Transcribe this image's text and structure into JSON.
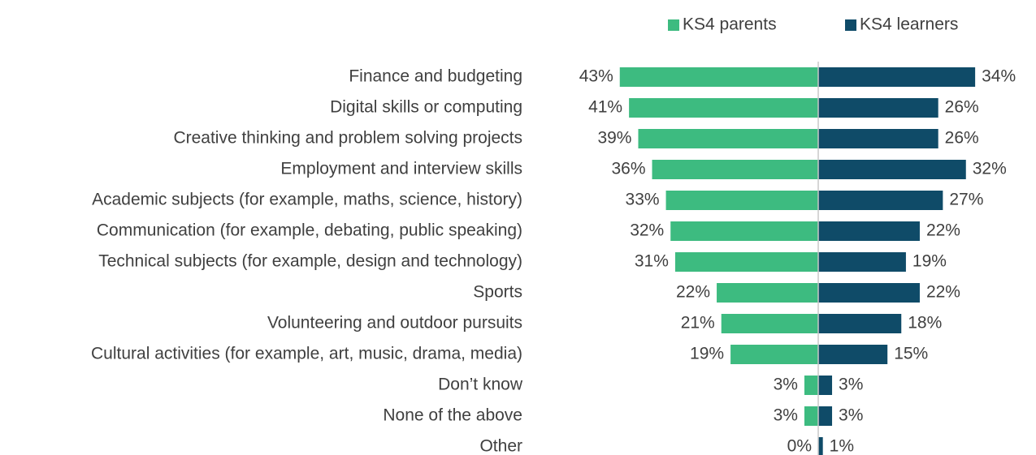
{
  "chart_data": {
    "type": "bar",
    "categories": [
      "Finance and budgeting",
      "Digital skills or computing",
      "Creative thinking and problem solving projects",
      "Employment and interview skills",
      "Academic subjects (for example, maths, science, history)",
      "Communication (for example, debating, public speaking)",
      "Technical subjects (for example, design and technology)",
      "Sports",
      "Volunteering and outdoor pursuits",
      "Cultural activities (for example, art, music, drama, media)",
      "Don’t know",
      "None of the above",
      "Other"
    ],
    "series": [
      {
        "name": "KS4 parents",
        "color": "#3dbb80",
        "values": [
          43,
          41,
          39,
          36,
          33,
          32,
          31,
          22,
          21,
          19,
          3,
          3,
          0
        ],
        "value_labels": [
          "43%",
          "41%",
          "39%",
          "36%",
          "33%",
          "32%",
          "31%",
          "22%",
          "21%",
          "19%",
          "3%",
          "3%",
          "0%"
        ]
      },
      {
        "name": "KS4 learners",
        "color": "#0f4b68",
        "values": [
          34,
          26,
          26,
          32,
          27,
          22,
          19,
          22,
          18,
          15,
          3,
          3,
          1
        ],
        "value_labels": [
          "34%",
          "26%",
          "26%",
          "32%",
          "27%",
          "22%",
          "19%",
          "22%",
          "18%",
          "15%",
          "3%",
          "3%",
          "1%"
        ]
      }
    ],
    "legend": "top-right"
  }
}
